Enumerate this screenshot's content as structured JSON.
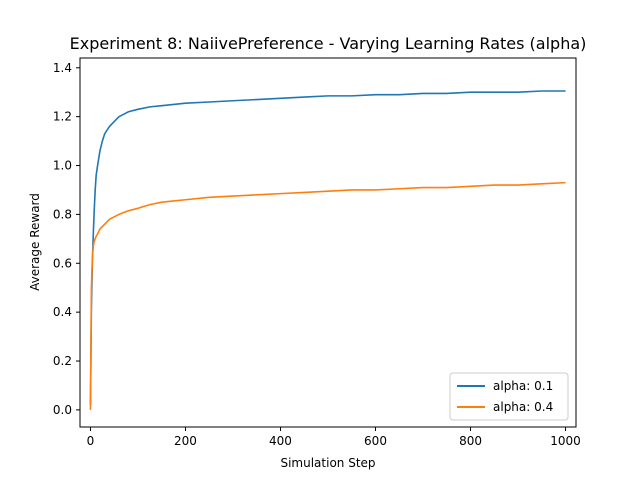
{
  "chart_data": {
    "type": "line",
    "title": "Experiment 8: NaiivePreference - Varying Learning Rates (alpha)",
    "xlabel": "Simulation Step",
    "ylabel": "Average Reward",
    "xlim": [
      -22,
      1022
    ],
    "ylim": [
      -0.07,
      1.44
    ],
    "xticks": [
      0,
      200,
      400,
      600,
      800,
      1000
    ],
    "yticks": [
      0.0,
      0.2,
      0.4,
      0.6,
      0.8,
      1.0,
      1.2,
      1.4
    ],
    "xtick_labels": [
      "0",
      "200",
      "400",
      "600",
      "800",
      "1000"
    ],
    "ytick_labels": [
      "0.0",
      "0.2",
      "0.4",
      "0.6",
      "0.8",
      "1.0",
      "1.2",
      "1.4"
    ],
    "grid": false,
    "legend_position": "bottom-right",
    "series": [
      {
        "name": "alpha: 0.1",
        "color": "#1f77b4",
        "x": [
          0,
          2,
          4,
          6,
          8,
          10,
          12,
          15,
          20,
          25,
          30,
          40,
          50,
          60,
          80,
          100,
          125,
          150,
          175,
          200,
          250,
          300,
          350,
          400,
          450,
          500,
          550,
          600,
          650,
          700,
          750,
          800,
          850,
          900,
          950,
          1000
        ],
        "y": [
          0.02,
          0.42,
          0.6,
          0.72,
          0.82,
          0.9,
          0.96,
          1.0,
          1.06,
          1.1,
          1.13,
          1.16,
          1.18,
          1.2,
          1.22,
          1.23,
          1.24,
          1.245,
          1.25,
          1.255,
          1.26,
          1.265,
          1.27,
          1.275,
          1.28,
          1.285,
          1.285,
          1.29,
          1.29,
          1.295,
          1.295,
          1.3,
          1.3,
          1.3,
          1.305,
          1.305
        ]
      },
      {
        "name": "alpha: 0.4",
        "color": "#ff7f0e",
        "x": [
          0,
          2,
          4,
          6,
          8,
          10,
          12,
          15,
          20,
          25,
          30,
          40,
          50,
          60,
          80,
          100,
          125,
          150,
          175,
          200,
          250,
          300,
          350,
          400,
          450,
          500,
          550,
          600,
          650,
          700,
          750,
          800,
          850,
          900,
          950,
          1000
        ],
        "y": [
          0.0,
          0.5,
          0.62,
          0.67,
          0.69,
          0.7,
          0.71,
          0.72,
          0.74,
          0.75,
          0.76,
          0.78,
          0.79,
          0.8,
          0.815,
          0.825,
          0.84,
          0.85,
          0.855,
          0.86,
          0.87,
          0.875,
          0.88,
          0.885,
          0.89,
          0.895,
          0.9,
          0.9,
          0.905,
          0.91,
          0.91,
          0.915,
          0.92,
          0.92,
          0.925,
          0.93
        ]
      }
    ]
  }
}
